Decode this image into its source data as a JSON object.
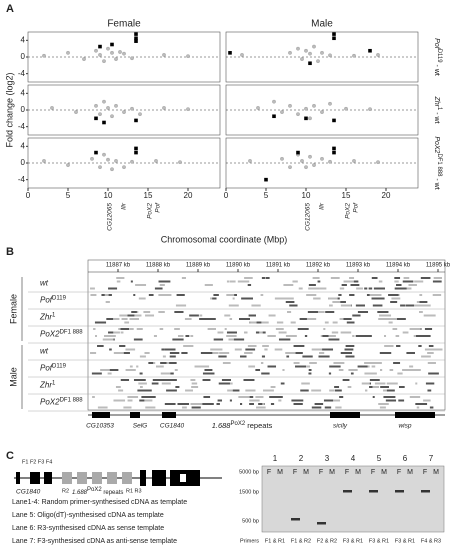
{
  "panel_a": {
    "label": "A",
    "columns": [
      "Female",
      "Male"
    ],
    "rows": [
      {
        "base": "Pof",
        "sup": "D119",
        "tail": " - wt"
      },
      {
        "base": "Zhr",
        "sup": "1",
        "tail": " - wt"
      },
      {
        "base": "PoX2",
        "sup": "DF1 888",
        "tail": " - wt"
      }
    ],
    "y_label": "Fold change (log2)",
    "x_label": "Chromosomal coordinate (Mbp)",
    "xlim": [
      0,
      24
    ],
    "xticks": [
      0,
      5,
      10,
      15,
      20
    ],
    "ylim": [
      -6,
      6
    ],
    "yticks": [
      4,
      0,
      -4
    ],
    "gene_labels": [
      "CG12065",
      "Ilir",
      "PoX2",
      "Pof"
    ],
    "plots": [
      {
        "x": [
          2,
          5,
          7,
          8.5,
          9,
          9.5,
          10,
          10.5,
          11,
          11.5,
          12,
          13,
          17,
          20
        ],
        "y": [
          0.3,
          1,
          -0.5,
          1.5,
          0.5,
          -1,
          2,
          1,
          -0.5,
          1.2,
          0.8,
          -0.3,
          0.5,
          0.2
        ],
        "hx": [
          9,
          10.5,
          13.5,
          13.5,
          13.5
        ],
        "hy": [
          2.5,
          3,
          5.5,
          4.5,
          3.8
        ]
      },
      {
        "x": [
          2,
          8,
          9,
          9.5,
          10,
          10.5,
          11,
          11.5,
          12,
          13,
          16,
          19
        ],
        "y": [
          0.5,
          1,
          2,
          -0.5,
          1.5,
          0.8,
          2.5,
          -1,
          1,
          0.4,
          0.3,
          0.5
        ],
        "hx": [
          0.5,
          10.5,
          13.5,
          13.5,
          18
        ],
        "hy": [
          1,
          -1.5,
          5.5,
          4.5,
          1.5
        ]
      },
      {
        "x": [
          3,
          6,
          8.5,
          9,
          9.5,
          10,
          10.5,
          11,
          12,
          13,
          14,
          17,
          20
        ],
        "y": [
          0.5,
          -0.5,
          1,
          -1,
          2,
          0.5,
          -1.5,
          1,
          -0.5,
          0.3,
          -1,
          0.5,
          0.2
        ],
        "hx": [
          8.5,
          9.5,
          13.5
        ],
        "hy": [
          -2,
          -3,
          -2.5
        ]
      },
      {
        "x": [
          4,
          6,
          7,
          8,
          9,
          10,
          10.5,
          11,
          12,
          13,
          15,
          18
        ],
        "y": [
          0.5,
          2,
          -0.5,
          1,
          -1,
          0.3,
          -2,
          1,
          -0.5,
          1.5,
          0.3,
          0.2
        ],
        "hx": [
          6,
          10,
          13.5
        ],
        "hy": [
          -1.5,
          -2,
          -2.5
        ]
      },
      {
        "x": [
          2,
          5,
          8,
          9,
          9.5,
          10,
          10.5,
          11,
          12,
          13,
          16,
          19
        ],
        "y": [
          0.5,
          -0.5,
          1,
          -1,
          2,
          0.8,
          -1.5,
          0.5,
          -1,
          0.3,
          0.5,
          0.2
        ],
        "hx": [
          8.5,
          13.5,
          13.5
        ],
        "hy": [
          2.5,
          3.5,
          2.5
        ]
      },
      {
        "x": [
          3,
          7,
          8,
          9,
          9.5,
          10,
          10.5,
          11,
          12,
          13,
          16,
          19
        ],
        "y": [
          0.5,
          1,
          -1,
          2,
          0.5,
          -1,
          1.5,
          -0.5,
          1,
          0.3,
          0.5,
          0.2
        ],
        "hx": [
          9,
          5,
          13.5,
          13.5
        ],
        "hy": [
          2.5,
          -4,
          3.5,
          2.5
        ]
      }
    ]
  },
  "panel_b": {
    "label": "B",
    "ruler": [
      "11887 kb",
      "11888 kb",
      "11889 kb",
      "11890 kb",
      "11891 kb",
      "11892 kb",
      "11893 kb",
      "11894 kb",
      "11895 kb"
    ],
    "groups": [
      "Female",
      "Male"
    ],
    "tracks": [
      {
        "base": "wt",
        "sup": ""
      },
      {
        "base": "Pof",
        "sup": "D119"
      },
      {
        "base": "Zhr",
        "sup": "1"
      },
      {
        "base": "PoX2",
        "sup": "DF1 888"
      }
    ],
    "genes": [
      "CG10353",
      "SelG",
      "CG1840",
      "sicily",
      "wisp"
    ],
    "repeats": {
      "base": "1.688",
      "sup": "PoX2",
      "tail": " repeats"
    }
  },
  "panel_c": {
    "label": "C",
    "diagram": {
      "gene": "CG1840",
      "repeats": {
        "base": "1.688",
        "sup": "PoX2",
        "tail": " repeats"
      },
      "primers_f": "F1  F2 F3 F4",
      "primers_r": [
        "R2",
        "R1 R3"
      ]
    },
    "notes": [
      "Lane1-4: Random primer-synthesised cDNA as template",
      "Lane 5: Oligo(dT)-synthesised cDNA as template",
      "Lane 6: R3-synthesised cDNA as sense template",
      "Lane 7: F3-synthesised cDNA as anti-sense template"
    ],
    "lanes": [
      "1",
      "2",
      "3",
      "4",
      "5",
      "6",
      "7"
    ],
    "sub_lanes": [
      "F",
      "M"
    ],
    "markers": [
      "5000 bp",
      "1500 bp",
      "500 bp"
    ],
    "primers_label": "Primers",
    "primers": [
      "F1 & R1",
      "F1 & R2",
      "F2 & R2",
      "F3 & R1",
      "F3 & R1",
      "F3 & R1",
      "F4 & R3"
    ]
  }
}
